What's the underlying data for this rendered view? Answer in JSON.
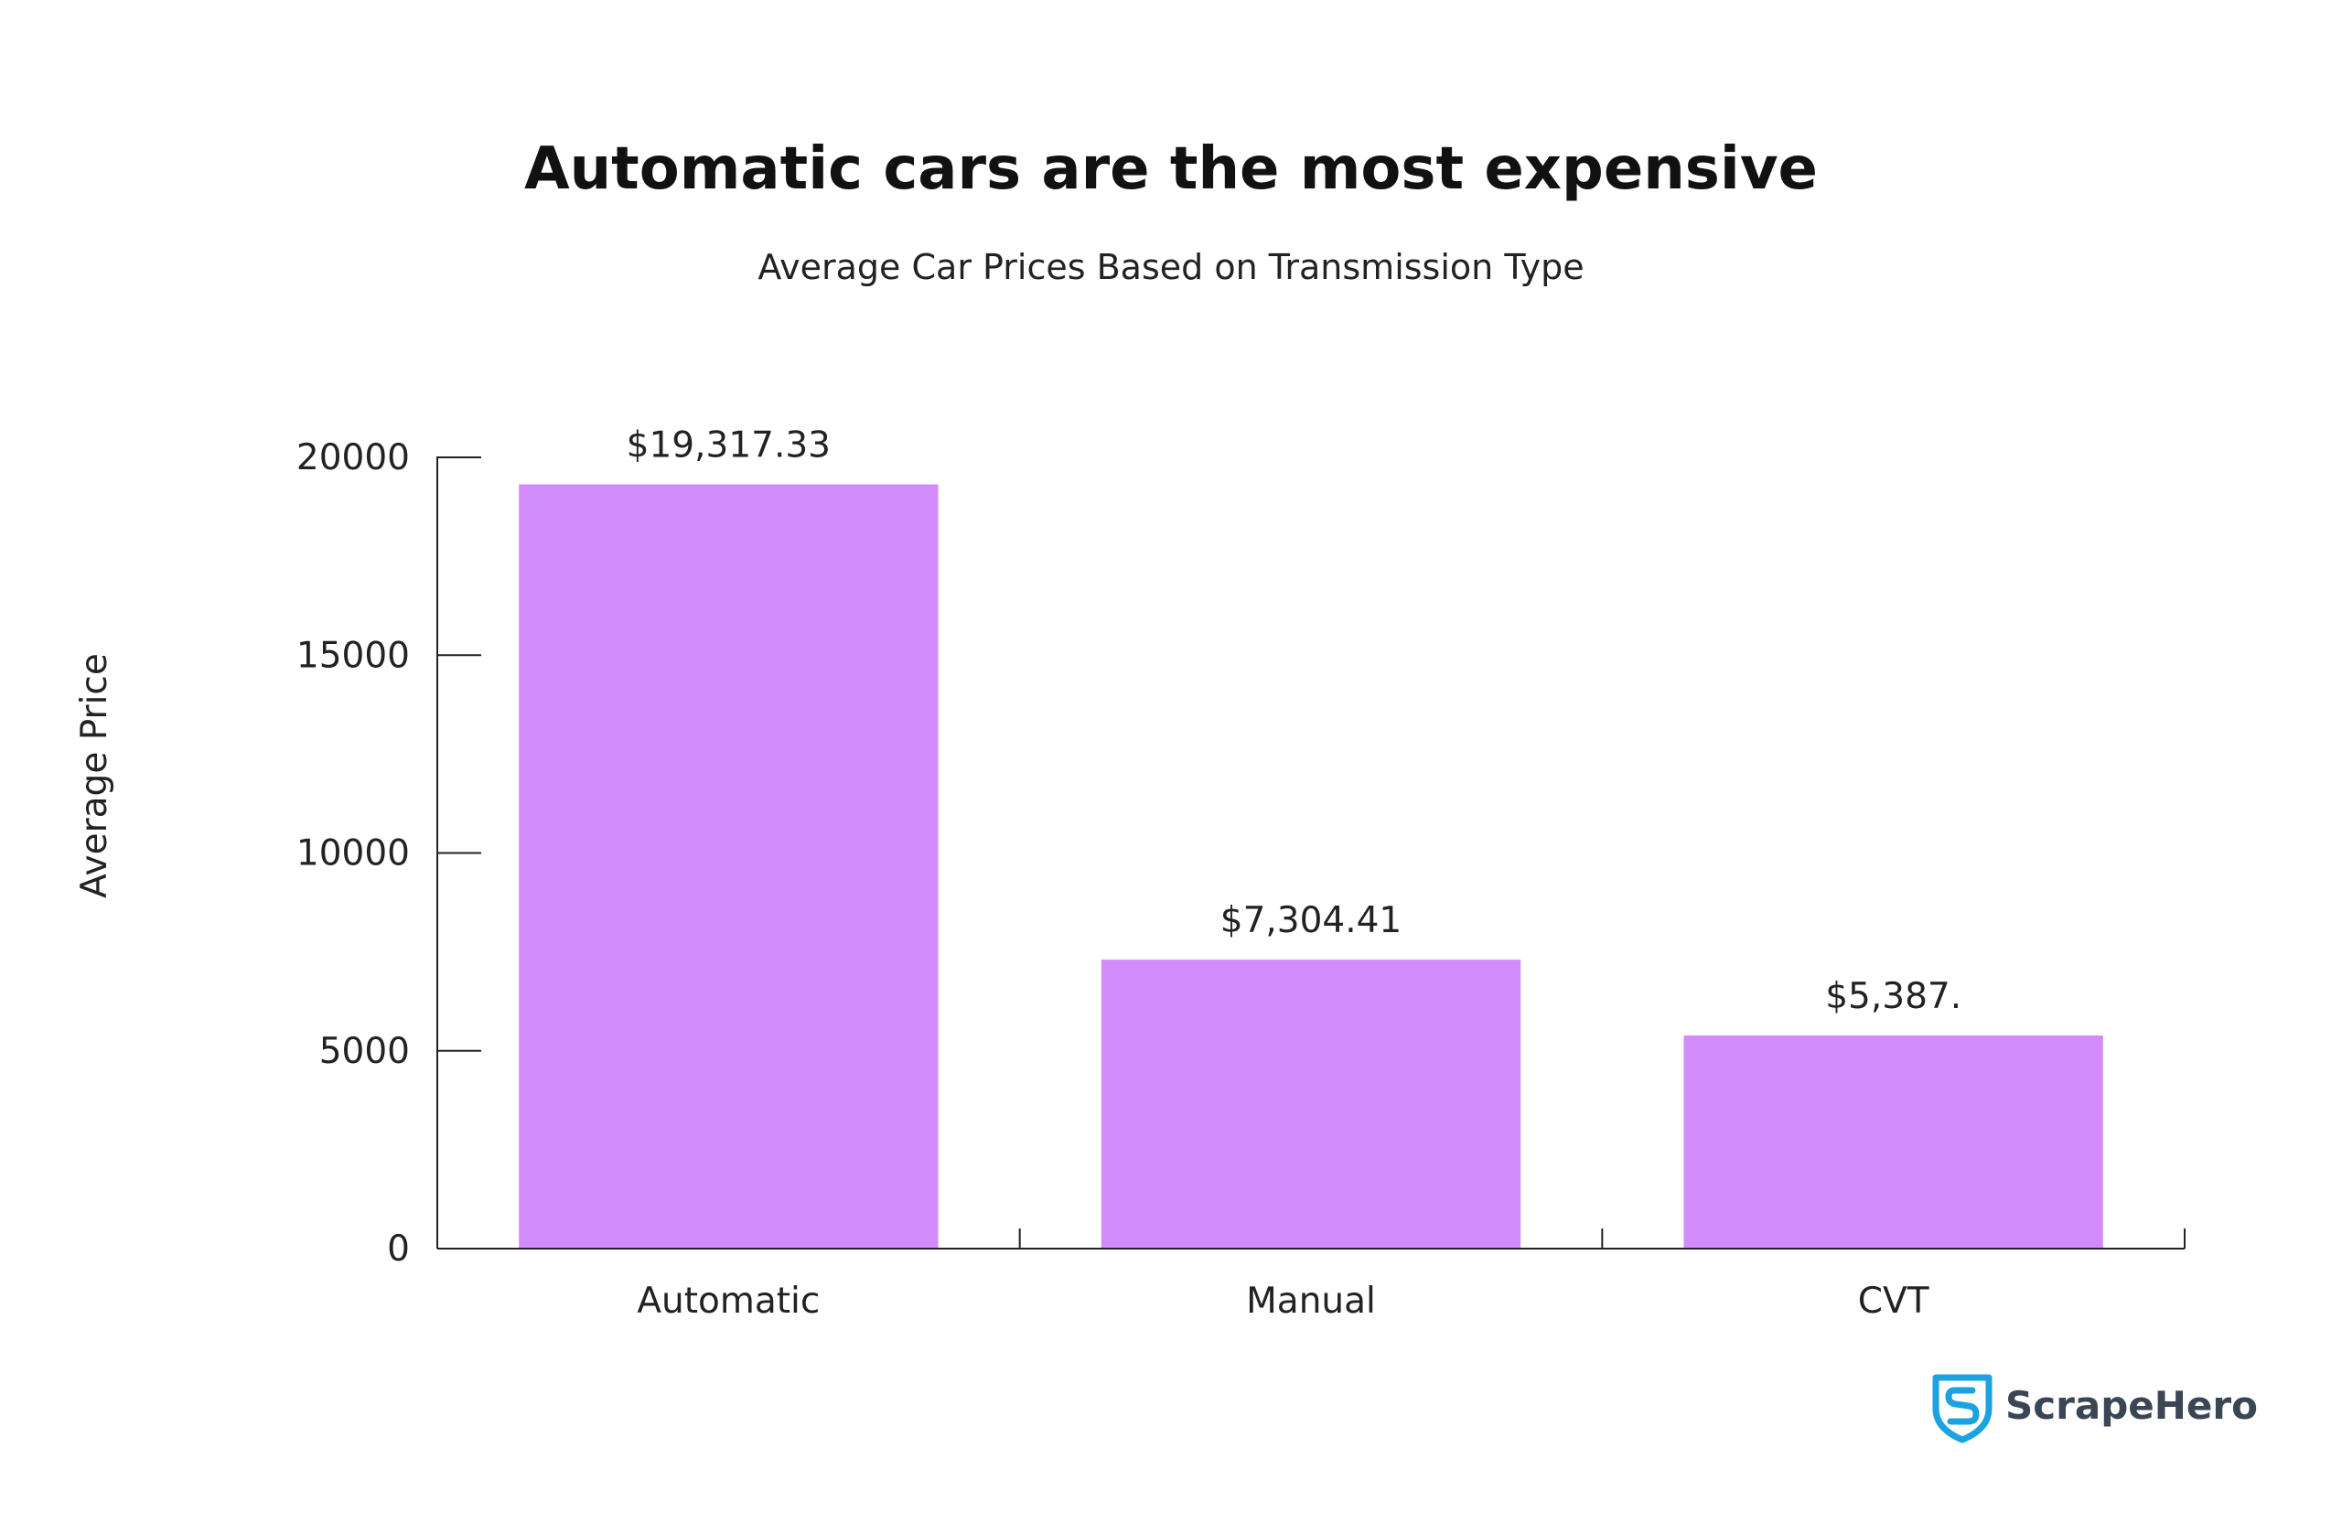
{
  "chart_data": {
    "type": "bar",
    "title": "Automatic cars are the most expensive",
    "subtitle": "Average Car Prices Based on Transmission Type",
    "xlabel": "",
    "ylabel": "Average Price",
    "categories": [
      "Automatic",
      "Manual",
      "CVT"
    ],
    "values": [
      19317.33,
      7304.41,
      5387
    ],
    "data_labels": [
      "$19,317.33",
      "$7,304.41",
      "$5,387."
    ],
    "yticks": [
      0,
      5000,
      10000,
      15000,
      20000
    ],
    "ylim": [
      0,
      20000
    ],
    "grid": false,
    "bar_color": "#d28cfa"
  },
  "branding": {
    "logo_text": "ScrapeHero",
    "logo_icon": "shield-s-icon",
    "logo_color": "#1aa3e0"
  }
}
